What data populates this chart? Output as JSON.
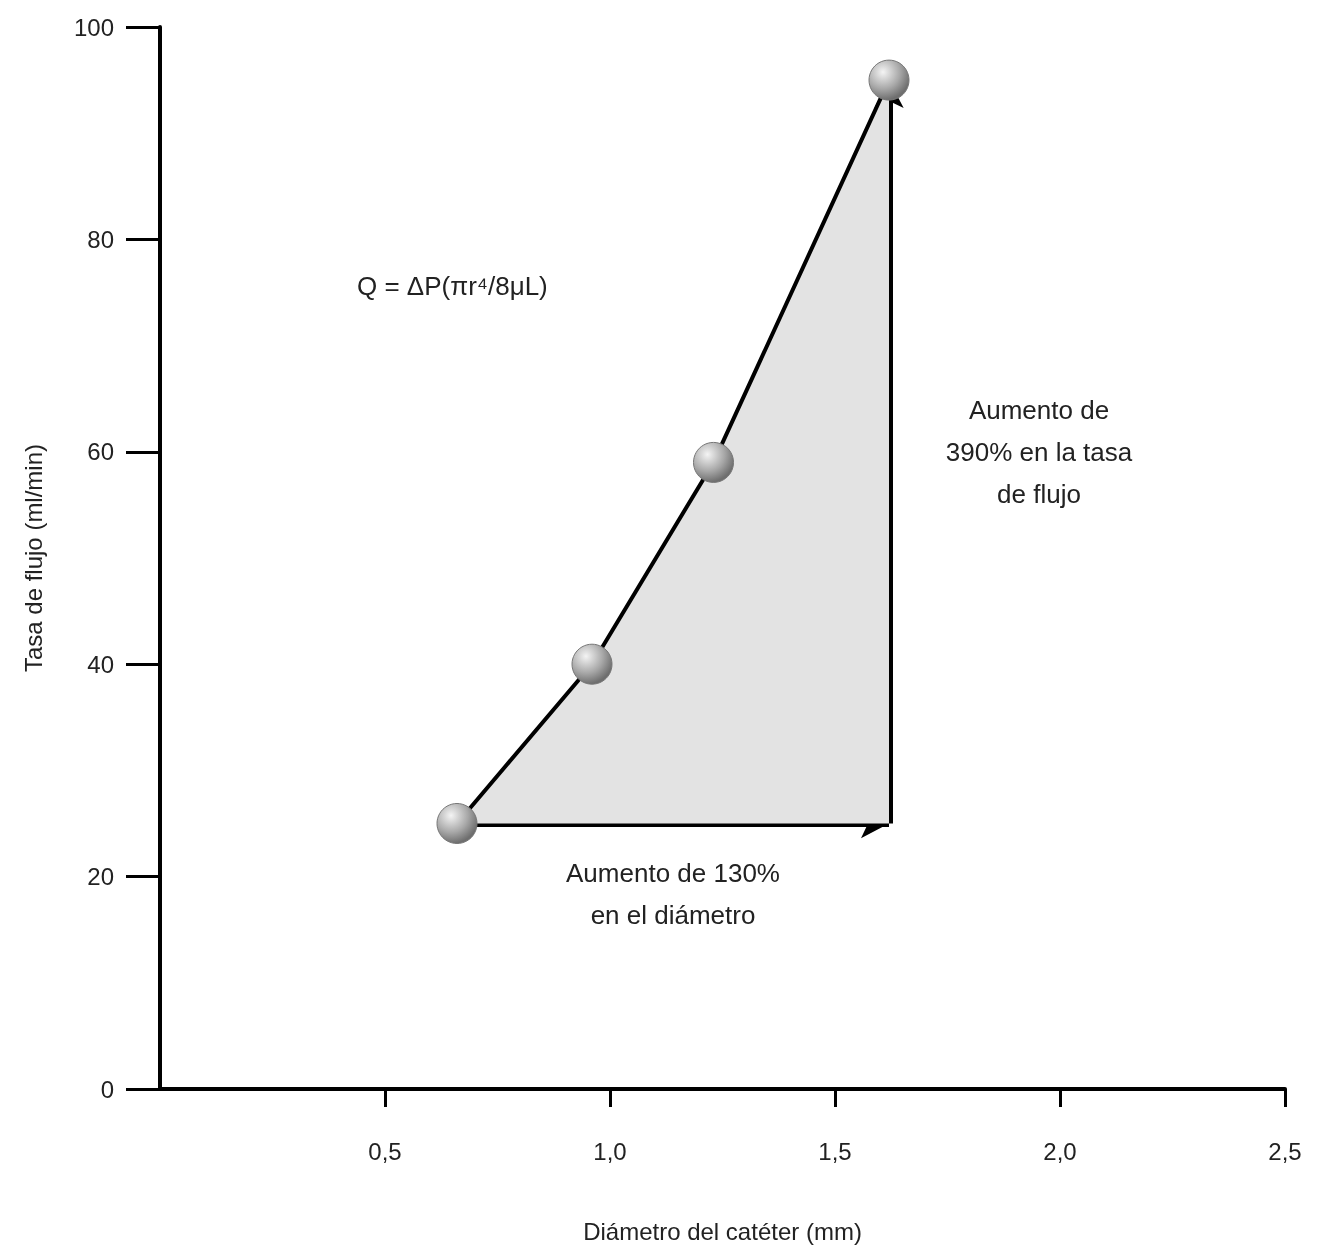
{
  "chart_data": {
    "type": "area",
    "xlabel": "Diámetro del catéter (mm)",
    "ylabel": "Tasa de flujo (ml/min)",
    "x": [
      0.66,
      0.96,
      1.23,
      1.62
    ],
    "series": [
      {
        "color": "#000000",
        "values": [
          25,
          40,
          59,
          95
        ]
      }
    ],
    "xlim": [
      0,
      2.5
    ],
    "xticks": [
      {
        "value": 0.5,
        "label": "0,5"
      },
      {
        "value": 1,
        "label": "1,0"
      },
      {
        "value": 1.5,
        "label": "1,5"
      },
      {
        "value": 2,
        "label": "2,0"
      },
      {
        "value": 2.5,
        "label": "2,5"
      }
    ],
    "ylim": [
      0,
      100
    ],
    "yticks": [
      0,
      20,
      40,
      60,
      80,
      100
    ],
    "grid": false,
    "marker": "circle",
    "line_style": "solid",
    "annotations": [
      "Q = ΔP(πr⁴/8μL)",
      {
        "text": "Aumento de 130%\nen el diámetro",
        "x": 1.14,
        "y": 25
      },
      {
        "text": "Aumento de\n390% en la tasa\nde flujo",
        "x": 1.62,
        "y": 60
      }
    ]
  }
}
